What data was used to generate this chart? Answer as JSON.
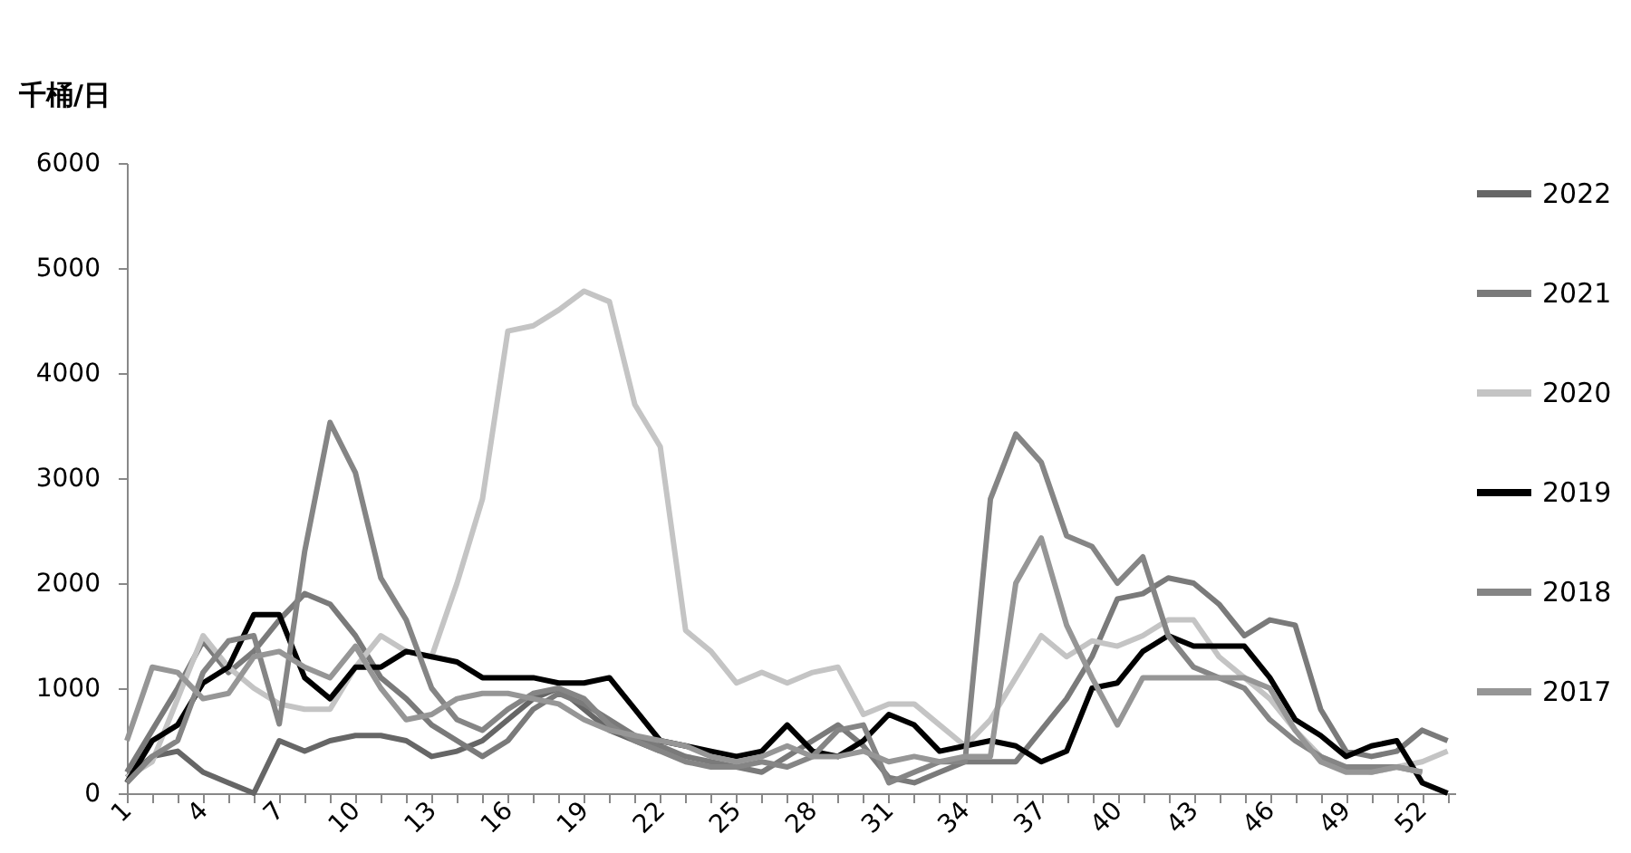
{
  "chart_data": {
    "type": "line",
    "ylabel": "千桶/日",
    "x": [
      1,
      2,
      3,
      4,
      5,
      6,
      7,
      8,
      9,
      10,
      11,
      12,
      13,
      14,
      15,
      16,
      17,
      18,
      19,
      20,
      21,
      22,
      23,
      24,
      25,
      26,
      27,
      28,
      29,
      30,
      31,
      32,
      33,
      34,
      35,
      36,
      37,
      38,
      39,
      40,
      41,
      42,
      43,
      44,
      45,
      46,
      47,
      48,
      49,
      50,
      51,
      52,
      53
    ],
    "xlim": [
      1,
      53.3
    ],
    "xticks": [
      1,
      {
        "value": 2,
        "label": null
      },
      {
        "value": 3,
        "label": null
      },
      4,
      {
        "value": 5,
        "label": null
      },
      {
        "value": 6,
        "label": null
      },
      7,
      {
        "value": 8,
        "label": null
      },
      {
        "value": 9,
        "label": null
      },
      10,
      {
        "value": 11,
        "label": null
      },
      {
        "value": 12,
        "label": null
      },
      13,
      {
        "value": 14,
        "label": null
      },
      {
        "value": 15,
        "label": null
      },
      16,
      {
        "value": 17,
        "label": null
      },
      {
        "value": 18,
        "label": null
      },
      19,
      {
        "value": 20,
        "label": null
      },
      {
        "value": 21,
        "label": null
      },
      22,
      {
        "value": 23,
        "label": null
      },
      {
        "value": 24,
        "label": null
      },
      25,
      {
        "value": 26,
        "label": null
      },
      {
        "value": 27,
        "label": null
      },
      28,
      {
        "value": 29,
        "label": null
      },
      {
        "value": 30,
        "label": null
      },
      31,
      {
        "value": 32,
        "label": null
      },
      {
        "value": 33,
        "label": null
      },
      34,
      {
        "value": 35,
        "label": null
      },
      {
        "value": 36,
        "label": null
      },
      37,
      {
        "value": 38,
        "label": null
      },
      {
        "value": 39,
        "label": null
      },
      40,
      {
        "value": 41,
        "label": null
      },
      {
        "value": 42,
        "label": null
      },
      43,
      {
        "value": 44,
        "label": null
      },
      {
        "value": 45,
        "label": null
      },
      46,
      {
        "value": 47,
        "label": null
      },
      {
        "value": 48,
        "label": null
      },
      49,
      {
        "value": 50,
        "label": null
      },
      {
        "value": 51,
        "label": null
      },
      52,
      {
        "value": 53,
        "label": null
      }
    ],
    "ylim": [
      0,
      6000
    ],
    "yticks": [
      0,
      1000,
      2000,
      3000,
      4000,
      5000,
      6000
    ],
    "grid": false,
    "legend": "right",
    "marker": "none",
    "line_style": "solid",
    "series": [
      {
        "name": "2022",
        "color": "#666666",
        "values": [
          150,
          350,
          400,
          200,
          100,
          0,
          500,
          400,
          500,
          550,
          550,
          500,
          350,
          400,
          500,
          700,
          900,
          1000,
          800,
          600,
          500,
          400,
          null,
          null,
          null,
          null,
          null,
          null,
          null,
          null,
          null,
          null,
          null,
          null,
          null,
          null,
          null,
          null,
          null,
          null,
          null,
          null,
          null,
          null,
          null,
          null,
          null,
          null,
          null,
          null,
          null,
          null,
          null
        ]
      },
      {
        "name": "2021",
        "color": "#7a7a7a",
        "values": [
          200,
          600,
          1000,
          1450,
          1150,
          1350,
          1650,
          1900,
          1800,
          1500,
          1100,
          900,
          650,
          500,
          350,
          500,
          800,
          950,
          850,
          700,
          550,
          450,
          350,
          300,
          250,
          200,
          350,
          500,
          650,
          450,
          150,
          100,
          200,
          300,
          300,
          300,
          600,
          900,
          1300,
          1850,
          1900,
          2050,
          2000,
          1800,
          1500,
          1650,
          1600,
          800,
          400,
          350,
          400,
          600,
          500
        ]
      },
      {
        "name": "2020",
        "color": "#c4c4c4",
        "values": [
          150,
          300,
          900,
          1500,
          1200,
          1000,
          850,
          800,
          800,
          1200,
          1500,
          1350,
          1300,
          2000,
          2800,
          4400,
          4450,
          4600,
          4780,
          4680,
          3700,
          3300,
          1550,
          1350,
          1050,
          1150,
          1050,
          1150,
          1200,
          750,
          850,
          850,
          650,
          450,
          700,
          1100,
          1500,
          1300,
          1450,
          1400,
          1500,
          1650,
          1650,
          1300,
          1100,
          900,
          600,
          350,
          250,
          200,
          250,
          300,
          400
        ]
      },
      {
        "name": "2019",
        "color": "#000000",
        "values": [
          100,
          500,
          650,
          1050,
          1200,
          1700,
          1700,
          1100,
          900,
          1200,
          1200,
          1350,
          1300,
          1250,
          1100,
          1100,
          1100,
          1050,
          1050,
          1100,
          800,
          500,
          450,
          400,
          350,
          400,
          650,
          400,
          350,
          500,
          750,
          650,
          400,
          450,
          500,
          450,
          300,
          400,
          1000,
          1050,
          1350,
          1500,
          1400,
          1400,
          1400,
          1100,
          700,
          550,
          350,
          450,
          500,
          100,
          0
        ]
      },
      {
        "name": "2018",
        "color": "#858585",
        "values": [
          100,
          350,
          500,
          1150,
          1450,
          1500,
          660,
          2300,
          3530,
          3050,
          2050,
          1650,
          1000,
          700,
          600,
          800,
          950,
          1000,
          900,
          650,
          500,
          400,
          300,
          250,
          250,
          300,
          250,
          350,
          600,
          650,
          100,
          200,
          300,
          300,
          2800,
          3420,
          3150,
          2450,
          2350,
          2000,
          2250,
          1500,
          1200,
          1100,
          1000,
          700,
          500,
          350,
          250,
          250,
          250,
          200,
          null
        ]
      },
      {
        "name": "2017",
        "color": "#969696",
        "values": [
          500,
          1200,
          1150,
          900,
          950,
          1300,
          1350,
          1200,
          1100,
          1400,
          1000,
          700,
          750,
          900,
          950,
          950,
          900,
          850,
          700,
          600,
          550,
          500,
          450,
          350,
          300,
          350,
          450,
          350,
          350,
          400,
          300,
          350,
          300,
          350,
          350,
          2000,
          2430,
          1600,
          1100,
          650,
          1100,
          1100,
          1100,
          1100,
          1100,
          1000,
          600,
          300,
          200,
          200,
          250,
          200,
          null
        ]
      }
    ]
  }
}
